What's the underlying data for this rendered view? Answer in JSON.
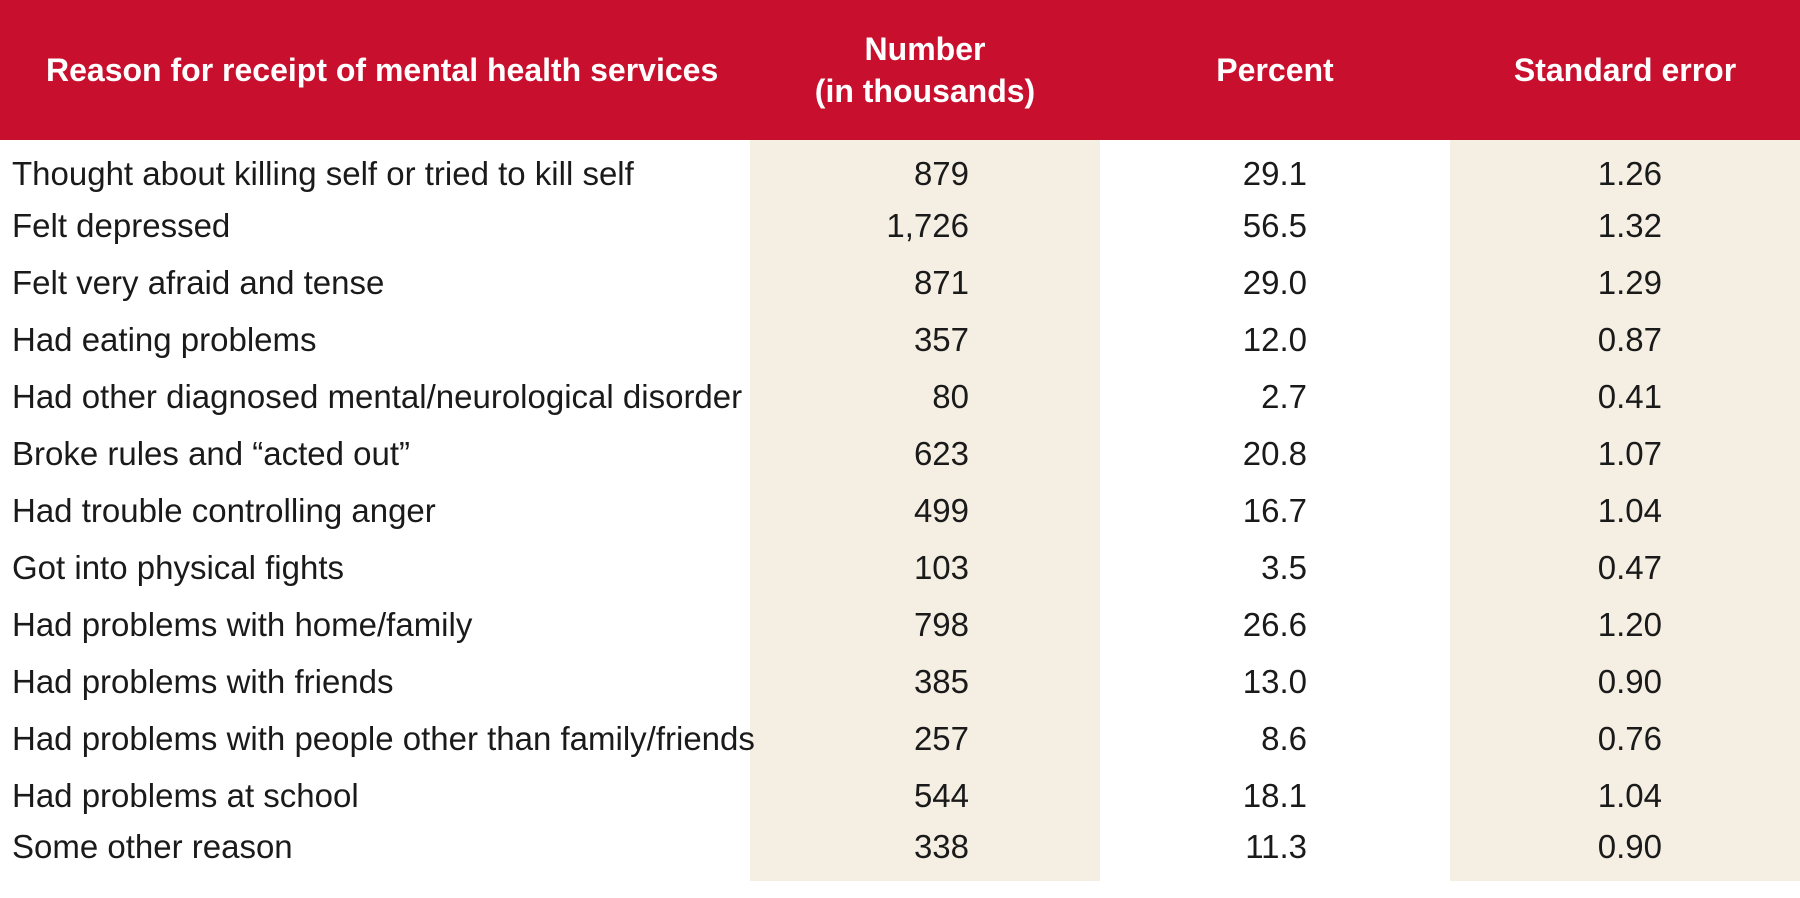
{
  "table": {
    "headers": {
      "reason": "Reason for receipt of mental health services",
      "number_line1": "Number",
      "number_line2": "(in thousands)",
      "percent": "Percent",
      "standard_error": "Standard error"
    },
    "rows": [
      {
        "reason": "Thought about killing self or tried to kill self",
        "number": "879",
        "percent": "29.1",
        "se": "1.26"
      },
      {
        "reason": "Felt depressed",
        "number": "1,726",
        "percent": "56.5",
        "se": "1.32"
      },
      {
        "reason": "Felt very afraid and tense",
        "number": "871",
        "percent": "29.0",
        "se": "1.29"
      },
      {
        "reason": "Had eating problems",
        "number": "357",
        "percent": "12.0",
        "se": "0.87"
      },
      {
        "reason": "Had other diagnosed mental/neurological disorder",
        "number": "80",
        "percent": "2.7",
        "se": "0.41"
      },
      {
        "reason": "Broke rules and “acted out”",
        "number": "623",
        "percent": "20.8",
        "se": "1.07"
      },
      {
        "reason": "Had trouble controlling anger",
        "number": "499",
        "percent": "16.7",
        "se": "1.04"
      },
      {
        "reason": "Got into physical fights",
        "number": "103",
        "percent": "3.5",
        "se": "0.47"
      },
      {
        "reason": "Had problems with home/family",
        "number": "798",
        "percent": "26.6",
        "se": "1.20"
      },
      {
        "reason": "Had problems with friends",
        "number": "385",
        "percent": "13.0",
        "se": "0.90"
      },
      {
        "reason": "Had problems with people other than family/friends",
        "number": "257",
        "percent": "8.6",
        "se": "0.76"
      },
      {
        "reason": "Had problems at school",
        "number": "544",
        "percent": "18.1",
        "se": "1.04"
      },
      {
        "reason": "Some other reason",
        "number": "338",
        "percent": "11.3",
        "se": "0.90"
      }
    ]
  },
  "colors": {
    "header_bg": "#c8102e",
    "header_text": "#ffffff",
    "shaded_column": "#f5efe3"
  }
}
